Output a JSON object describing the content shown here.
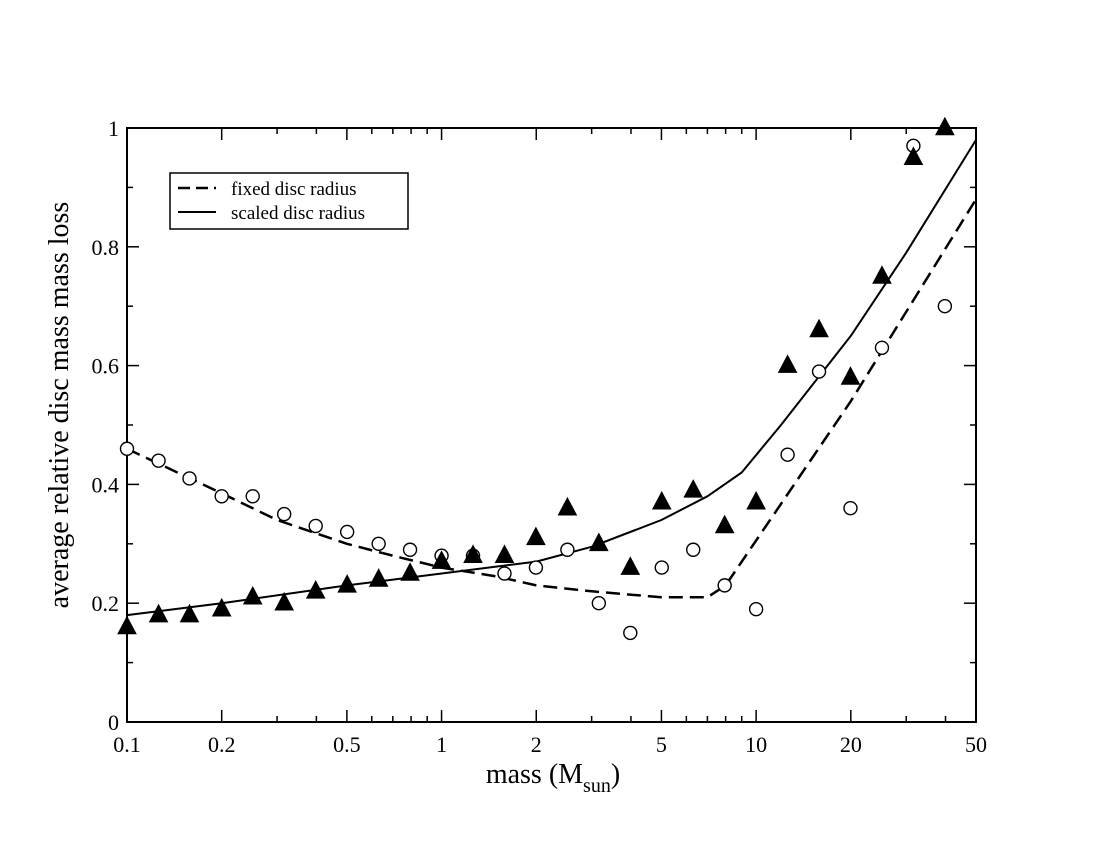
{
  "chart_data": {
    "type": "scatter",
    "title": "",
    "xlabel": "mass (M",
    "xlabel_sub": "sun",
    "xlabel_close": ")",
    "ylabel": "average relative disc mass mass loss",
    "xscale": "log",
    "xlim": [
      0.1,
      50
    ],
    "ylim": [
      0,
      1
    ],
    "grid": false,
    "x_ticks": [
      {
        "value": 0.1,
        "label": "0.1"
      },
      {
        "value": 0.2,
        "label": "0.2"
      },
      {
        "value": 0.5,
        "label": "0.5"
      },
      {
        "value": 1,
        "label": "1"
      },
      {
        "value": 2,
        "label": "2"
      },
      {
        "value": 5,
        "label": "5"
      },
      {
        "value": 10,
        "label": "10"
      },
      {
        "value": 20,
        "label": "20"
      },
      {
        "value": 50,
        "label": "50"
      }
    ],
    "y_ticks": [
      {
        "value": 0,
        "label": "0"
      },
      {
        "value": 0.2,
        "label": "0.2"
      },
      {
        "value": 0.4,
        "label": "0.4"
      },
      {
        "value": 0.6,
        "label": "0.6"
      },
      {
        "value": 0.8,
        "label": "0.8"
      },
      {
        "value": 1,
        "label": "1"
      }
    ],
    "y_minor_ticks": [
      0.1,
      0.3,
      0.5,
      0.7,
      0.9
    ],
    "legend": {
      "position": "top-left",
      "entries": [
        {
          "label": "fixed disc radius",
          "style": "dashed"
        },
        {
          "label": "scaled disc radius",
          "style": "solid"
        }
      ]
    },
    "series": [
      {
        "name": "fixed disc radius",
        "kind": "line",
        "style": "dashed",
        "x": [
          0.1,
          0.2,
          0.3,
          0.5,
          0.7,
          1.0,
          1.5,
          2.0,
          3.0,
          5.0,
          7.0,
          8.0,
          20.0,
          50.0
        ],
        "y": [
          0.46,
          0.385,
          0.34,
          0.3,
          0.28,
          0.26,
          0.245,
          0.23,
          0.22,
          0.21,
          0.21,
          0.23,
          0.54,
          0.88
        ]
      },
      {
        "name": "scaled disc radius",
        "kind": "line",
        "style": "solid",
        "x": [
          0.1,
          0.2,
          0.5,
          1.0,
          2.0,
          3.0,
          5.0,
          7.0,
          9.0,
          12.0,
          20.0,
          30.0,
          50.0
        ],
        "y": [
          0.18,
          0.2,
          0.23,
          0.25,
          0.27,
          0.295,
          0.34,
          0.38,
          0.42,
          0.5,
          0.65,
          0.79,
          0.98
        ]
      },
      {
        "name": "circles",
        "kind": "points",
        "marker": "circle",
        "x": [
          0.1,
          0.126,
          0.158,
          0.2,
          0.251,
          0.316,
          0.398,
          0.501,
          0.631,
          0.794,
          1.0,
          1.259,
          1.585,
          1.995,
          2.512,
          3.162,
          3.981,
          5.012,
          6.31,
          7.943,
          10.0,
          12.59,
          15.85,
          19.95,
          25.12,
          31.62,
          39.81
        ],
        "y": [
          0.46,
          0.44,
          0.41,
          0.38,
          0.38,
          0.35,
          0.33,
          0.32,
          0.3,
          0.29,
          0.28,
          0.28,
          0.25,
          0.26,
          0.29,
          0.2,
          0.15,
          0.26,
          0.29,
          0.23,
          0.19,
          0.45,
          0.59,
          0.36,
          0.63,
          0.97,
          0.7
        ]
      },
      {
        "name": "triangles",
        "kind": "points",
        "marker": "triangle",
        "x": [
          0.1,
          0.126,
          0.158,
          0.2,
          0.251,
          0.316,
          0.398,
          0.501,
          0.631,
          0.794,
          1.0,
          1.259,
          1.585,
          1.995,
          2.512,
          3.162,
          3.981,
          5.012,
          6.31,
          7.943,
          10.0,
          12.59,
          15.85,
          19.95,
          25.12,
          31.62,
          39.81
        ],
        "y": [
          0.16,
          0.18,
          0.18,
          0.19,
          0.21,
          0.2,
          0.22,
          0.23,
          0.24,
          0.25,
          0.27,
          0.28,
          0.28,
          0.31,
          0.36,
          0.3,
          0.26,
          0.37,
          0.39,
          0.33,
          0.37,
          0.6,
          0.66,
          0.58,
          0.75,
          0.95,
          1.0
        ]
      }
    ]
  }
}
